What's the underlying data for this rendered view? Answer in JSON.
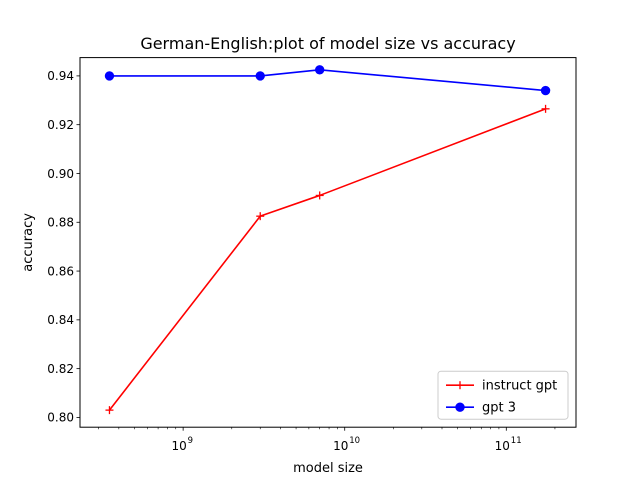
{
  "chart_data": {
    "type": "line",
    "title": "German-English:plot of model size vs accuracy",
    "xlabel": "model size",
    "ylabel": "accuracy",
    "xscale": "log",
    "xlim": [
      230000000,
      270000000000
    ],
    "ylim": [
      0.796,
      0.9475
    ],
    "x_ticks": [
      {
        "value": 1000000000,
        "base": "10",
        "exp": "9"
      },
      {
        "value": 10000000000,
        "base": "10",
        "exp": "10"
      },
      {
        "value": 100000000000,
        "base": "10",
        "exp": "11"
      }
    ],
    "y_ticks": [
      {
        "value": 0.8,
        "label": "0.80"
      },
      {
        "value": 0.82,
        "label": "0.82"
      },
      {
        "value": 0.84,
        "label": "0.84"
      },
      {
        "value": 0.86,
        "label": "0.86"
      },
      {
        "value": 0.88,
        "label": "0.88"
      },
      {
        "value": 0.9,
        "label": "0.90"
      },
      {
        "value": 0.92,
        "label": "0.92"
      },
      {
        "value": 0.94,
        "label": "0.94"
      }
    ],
    "series": [
      {
        "name": "instruct gpt",
        "color": "#ff0000",
        "marker": "plus",
        "x": [
          350000000,
          3000000000,
          7000000000,
          175000000000
        ],
        "y": [
          0.803,
          0.8825,
          0.891,
          0.9265
        ]
      },
      {
        "name": "gpt 3",
        "color": "#0000ff",
        "marker": "circle",
        "x": [
          350000000,
          3000000000,
          7000000000,
          175000000000
        ],
        "y": [
          0.94,
          0.94,
          0.9425,
          0.934
        ]
      }
    ],
    "legend_position": "lower right",
    "grid": false
  }
}
